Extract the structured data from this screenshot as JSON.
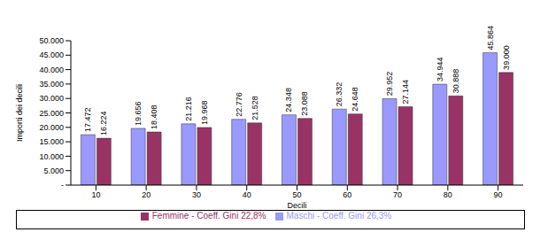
{
  "chart_data": {
    "type": "bar",
    "x_label": "Decili",
    "y_label": "Importi dei decili",
    "categories": [
      "10",
      "20",
      "30",
      "40",
      "50",
      "60",
      "70",
      "80",
      "90"
    ],
    "series": [
      {
        "name": "Maschi - Coeff. Gini 26,3%",
        "color": "#9999ff",
        "values": [
          17472,
          19656,
          21216,
          22776,
          24348,
          26332,
          29952,
          34944,
          45864
        ],
        "value_labels": [
          "17.472",
          "19.656",
          "21.216",
          "22.776",
          "24.348",
          "26.332",
          "29.952",
          "34.944",
          "45.864"
        ]
      },
      {
        "name": "Femmine - Coeff. Gini 22,8%",
        "color": "#993366",
        "values": [
          16224,
          18408,
          19968,
          21528,
          23088,
          24648,
          27144,
          30888,
          39000
        ],
        "value_labels": [
          "16.224",
          "18.408",
          "19.968",
          "21.528",
          "23.088",
          "24.648",
          "27.144",
          "30.888",
          "39.000"
        ]
      }
    ],
    "ylim": [
      0,
      50000
    ],
    "yticks": [
      {
        "value": 0,
        "label": "-"
      },
      {
        "value": 5000,
        "label": "5.000"
      },
      {
        "value": 10000,
        "label": "10.000"
      },
      {
        "value": 15000,
        "label": "15.000"
      },
      {
        "value": 20000,
        "label": "20.000"
      },
      {
        "value": 25000,
        "label": "25.000"
      },
      {
        "value": 30000,
        "label": "30.000"
      },
      {
        "value": 35000,
        "label": "35.000"
      },
      {
        "value": 40000,
        "label": "40.000"
      },
      {
        "value": 45000,
        "label": "45.000"
      },
      {
        "value": 50000,
        "label": "50.000"
      }
    ],
    "grid": false,
    "legend": "bottom",
    "data_labels": true
  }
}
